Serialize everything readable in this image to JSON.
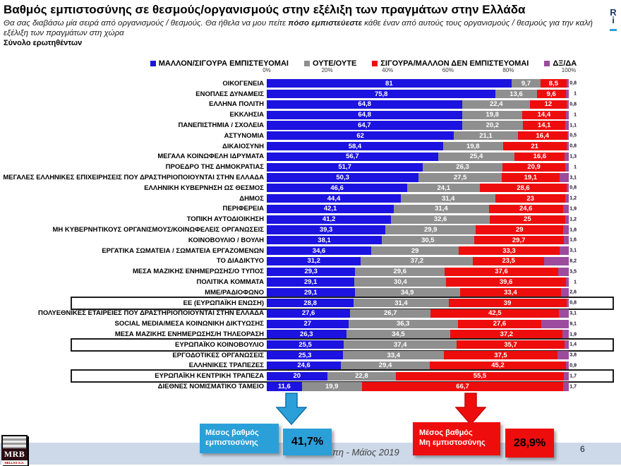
{
  "header": {
    "title": "Βαθμός εμπιστοσύνης σε θεσμούς/οργανισμούς στην εξέλιξη των πραγμάτων στην Ελλάδα",
    "subtitle_prefix": "Θα σας διαβάσω μία σειρά από οργανισμούς / θεσμούς. Θα ήθελα να μου πείτε ",
    "subtitle_emphasis": "πόσο εμπιστεύεστε",
    "subtitle_suffix": " κάθε έναν από αυτούς τους οργανισμούς / θεσμούς για την καλή εξέλιξη των πραγμάτων στη χώρα",
    "audience": "Σύνολο ερωτηθέντων",
    "corner_mark": {
      "line1": "R",
      "line2": "i"
    }
  },
  "legend": {
    "items": [
      {
        "label": "ΜΑΛΛΟΝ/ΣΙΓΟΥΡΑ ΕΜΠΙΣΤΕΥΟΜΑΙ",
        "color": "#1c13e0"
      },
      {
        "label": "ΟΥΤΕ/ΟΥΤΕ",
        "color": "#8f8f8f"
      },
      {
        "label": "ΣΙΓΟΥΡΑ/ΜΑΛΛΟΝ ΔΕΝ ΕΜΠΙΣΤΕΥΟΜΑΙ",
        "color": "#ee0d0d"
      },
      {
        "label": "ΔΞ/ΔΑ",
        "color": "#9d4b9d"
      }
    ]
  },
  "axis": {
    "ticks": [
      "0%",
      "20%",
      "40%",
      "60%",
      "80%",
      "100%"
    ]
  },
  "chart_data": {
    "type": "bar",
    "stacked": true,
    "orientation": "horizontal",
    "value_unit": "%",
    "xlim": [
      0,
      100
    ],
    "decimal_separator": ",",
    "categories": [
      "ΟΙΚΟΓΕΝΕΙΑ",
      "ΕΝΟΠΛΕΣ ΔΥΝΑΜΕΙΣ",
      "ΕΛΛΗΝΑ ΠΟΛΙΤΗ",
      "ΕΚΚΛΗΣΙΑ",
      "ΠΑΝΕΠΙΣΤΗΜΙΑ / ΣΧΟΛΕΙΑ",
      "ΑΣΤΥΝΟΜΙΑ",
      "ΔΙΚΑΙΟΣΥΝΗ",
      "ΜΕΓΑΛΑ ΚΟΙΝΩΦΕΛΗ ΙΔΡΥΜΑΤΑ",
      "ΠΡΟΕΔΡΟ ΤΗΣ ΔΗΜΟΚΡΑΤΙΑΣ",
      "ΜΕΓΑΛΕΣ ΕΛΛΗΝΙΚΕΣ ΕΠΙΧΕΙΡΗΣΕΙΣ ΠΟΥ ΔΡΑΣΤΗΡΙΟΠΟΙΟΥΝΤΑΙ ΣΤΗΝ ΕΛΛΑΔΑ",
      "ΕΛΛΗΝΙΚΗ ΚΥΒΕΡΝΗΣΗ ΩΣ ΘΕΣΜΟΣ",
      "ΔΗΜΟΣ",
      "ΠΕΡΙΦΕΡΕΙΑ",
      "ΤΟΠΙΚΗ ΑΥΤΟΔΙΟΙΚΗΣΗ",
      "ΜΗ ΚΥΒΕΡΝΗΤΙΚΟΥΣ ΟΡΓΑΝΙΣΜΟΥΣ/ΚΟΙΝΩΦΕΛΕΙΣ ΟΡΓΑΝΩΣΕΙΣ",
      "ΚΟΙΝΟΒΟΥΛΙΟ / ΒΟΥΛΗ",
      "ΕΡΓΑΤΙΚΑ ΣΩΜΑΤΕΙΑ / ΣΩΜΑΤΕΙΑ ΕΡΓΑΖΟΜΕΝΩΝ",
      "ΤΟ ΔΙΑΔΙΚΤΥΟ",
      "ΜΕΣΑ ΜΑΖΙΚΗΣ ΕΝΗΜΕΡΩΣΗΣ/Ο ΤΥΠΟΣ",
      "ΠΟΛΙΤΙΚΑ ΚΟΜΜΑΤΑ",
      "ΜΜΕ/ΡΑΔΙΟΦΩΝΟ",
      "ΕΕ (ΕΥΡΩΠΑΪΚΗ ΕΝΩΣΗ)",
      "ΠΟΛΥΕΘΝΙΚΕΣ ΕΤΑΙΡΕΙΕΣ ΠΟΥ ΔΡΑΣΤΗΡΙΟΠΟΙΟΥΝΤΑΙ ΣΤΗΝ ΕΛΛΑΔΑ",
      "SOCIAL MEDIA/ΜΕΣΑ ΚΟΙΝΩΝΙΚΗ ΔΙΚΤΥΩΣΗΣ",
      "ΜΕΣΑ ΜΑΖΙΚΗΣ ΕΝΗΜΕΡΩΣΗΣ/Η ΤΗΛΕΟΡΑΣΗ",
      "ΕΥΡΩΠΑΪΚΟ ΚΟΙΝΟΒΟΥΛΙΟ",
      "ΕΡΓΟΔΟΤΙΚΕΣ ΟΡΓΑΝΩΣΕΙΣ",
      "ΕΛΛΗΝΙΚΕΣ ΤΡΑΠΕΖΕΣ",
      "ΕΥΡΩΠΑΪΚΗ ΚΕΝΤΡΙΚΗ ΤΡΑΠΕΖΑ",
      "ΔΙΕΘΝΕΣ ΝΟΜΙΣΜΑΤΙΚΟ ΤΑΜΕΙΟ"
    ],
    "series": [
      {
        "name": "ΜΑΛΛΟΝ/ΣΙΓΟΥΡΑ ΕΜΠΙΣΤΕΥΟΜΑΙ",
        "color": "#1c13e0",
        "values": [
          81,
          75.8,
          64.8,
          64.8,
          64.7,
          62,
          58.4,
          56.7,
          51.7,
          50.3,
          46.6,
          44.4,
          42.1,
          41.2,
          39.3,
          38.1,
          34.6,
          31.2,
          29.3,
          29.1,
          29.1,
          28.8,
          27.6,
          27,
          26.3,
          25.5,
          25.3,
          24.6,
          20,
          11.6
        ]
      },
      {
        "name": "ΟΥΤΕ/ΟΥΤΕ",
        "color": "#8f8f8f",
        "values": [
          9.7,
          13.6,
          22.4,
          19.8,
          20.2,
          21.1,
          19.8,
          25.4,
          26.3,
          27.5,
          24.1,
          31.4,
          31.4,
          32.6,
          29.9,
          30.5,
          29,
          37.2,
          29.6,
          30.4,
          34.9,
          31.4,
          26.7,
          36.3,
          34.5,
          37.4,
          33.4,
          29.4,
          22.8,
          19.9
        ]
      },
      {
        "name": "ΣΙΓΟΥΡΑ/ΜΑΛΛΟΝ ΔΕΝ ΕΜΠΙΣΤΕΥΟΜΑΙ",
        "color": "#ee0d0d",
        "values": [
          8.5,
          9.6,
          12,
          14.4,
          14.1,
          16.4,
          21,
          16.6,
          20.9,
          19.1,
          28.6,
          23,
          24.6,
          25,
          29,
          29.7,
          33.3,
          23.5,
          37.6,
          39.6,
          33.4,
          39,
          42.5,
          27.6,
          37.2,
          35.7,
          37.5,
          45.2,
          55.5,
          66.7
        ]
      },
      {
        "name": "ΔΞ/ΔΑ",
        "color": "#9d4b9d",
        "values": [
          0.8,
          1,
          0.8,
          1,
          1.1,
          0.5,
          0.8,
          1.3,
          1,
          3.1,
          0.8,
          1.2,
          1.9,
          1.2,
          1.8,
          1.6,
          3.1,
          8.2,
          3.5,
          1,
          2.6,
          0.8,
          3.1,
          9.1,
          1.9,
          1.4,
          3.8,
          0.9,
          1.7,
          1.7
        ]
      }
    ],
    "highlighted_categories": [
      "ΕΕ (ΕΥΡΩΠΑΪΚΗ ΕΝΩΣΗ)",
      "ΕΥΡΩΠΑΪΚΟ ΚΟΙΝΟΒΟΥΛΙΟ",
      "ΕΥΡΩΠΑΪΚΗ ΚΕΝΤΡΙΚΗ ΤΡΑΠΕΖΑ"
    ]
  },
  "callouts": {
    "trust": {
      "line1": "Μέσος βαθμός",
      "line2": "εμπιστοσύνης",
      "value": "41,7%",
      "color": "#2ba0d8"
    },
    "distrust": {
      "line1": "Μέσος βαθμός",
      "line2": "Μη εμπιστοσύνης",
      "value": "28,9%",
      "color": "#ee0d0d"
    }
  },
  "footer": {
    "source_fragment": "πη - Μάϊος 2019",
    "page_number": "6",
    "logo": {
      "name": "MRB",
      "subname": "HELLAS S.A."
    }
  }
}
